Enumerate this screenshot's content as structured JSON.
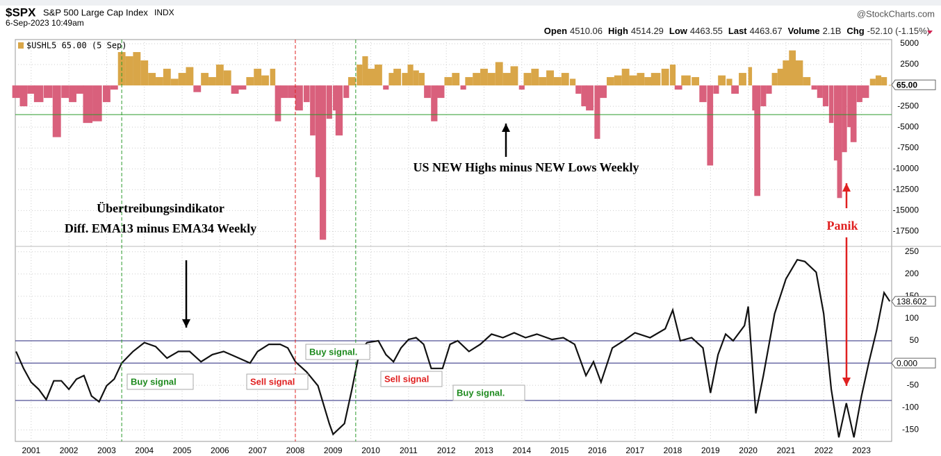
{
  "header": {
    "symbol": "$SPX",
    "name": "S&P 500 Large Cap Index",
    "exchange": "INDX",
    "date": "6-Sep-2023 10:49am",
    "source": "@StockCharts.com",
    "quote": [
      [
        "Open",
        "4510.06"
      ],
      [
        "High",
        "4514.29"
      ],
      [
        "Low",
        "4463.55"
      ],
      [
        "Last",
        "4463.67"
      ],
      [
        "Volume",
        "2.1B"
      ],
      [
        "Chg",
        "-52.10 (-1.15%)"
      ]
    ]
  },
  "annotations": [
    "US NEW Highs minus NEW Lows Weekly",
    "Übertreibungsindikator",
    "Diff. EMA13 minus EMA34 Weekly",
    "Panik",
    "Buy signal",
    "Sell signal",
    "Buy signal.",
    "Sell signal",
    "Buy signal."
  ],
  "chart_data": [
    {
      "type": "bar",
      "xlim": [
        2000.58,
        2023.8
      ],
      "ylim": [
        -19300,
        5500
      ],
      "yticks": [
        5000,
        2500,
        -2500,
        -5000,
        -7500,
        -10000,
        -12500,
        -15000,
        -17500
      ],
      "markers": [
        {
          "value": 65,
          "label": "65.00"
        }
      ],
      "hline": -3500,
      "hline_color": "#2a9a2a",
      "series": [
        {
          "name": "$USHL5 65.00 (5 Sep)",
          "color": "#d9a648",
          "negative_color": "#d9607c",
          "x": [
            2000.6,
            2000.8,
            2001.0,
            2001.2,
            2001.45,
            2001.68,
            2001.9,
            2002.1,
            2002.3,
            2002.5,
            2002.75,
            2003.0,
            2003.2,
            2003.4,
            2003.6,
            2003.8,
            2004.0,
            2004.2,
            2004.4,
            2004.6,
            2004.8,
            2005.0,
            2005.2,
            2005.4,
            2005.6,
            2005.8,
            2006.0,
            2006.2,
            2006.4,
            2006.6,
            2006.8,
            2007.0,
            2007.2,
            2007.4,
            2007.54,
            2007.7,
            2007.9,
            2008.1,
            2008.3,
            2008.46,
            2008.6,
            2008.73,
            2008.9,
            2009.05,
            2009.16,
            2009.35,
            2009.5,
            2009.7,
            2009.85,
            2010.0,
            2010.2,
            2010.4,
            2010.55,
            2010.7,
            2010.9,
            2011.05,
            2011.2,
            2011.35,
            2011.5,
            2011.68,
            2011.85,
            2012.05,
            2012.25,
            2012.45,
            2012.6,
            2012.8,
            2013.0,
            2013.2,
            2013.4,
            2013.6,
            2013.8,
            2014.0,
            2014.15,
            2014.35,
            2014.55,
            2014.75,
            2014.95,
            2015.15,
            2015.35,
            2015.5,
            2015.65,
            2015.8,
            2016.0,
            2016.15,
            2016.35,
            2016.55,
            2016.75,
            2016.95,
            2017.15,
            2017.35,
            2017.55,
            2017.8,
            2018.0,
            2018.15,
            2018.35,
            2018.6,
            2018.8,
            2018.99,
            2019.15,
            2019.3,
            2019.5,
            2019.65,
            2019.85,
            2020.05,
            2020.15,
            2020.24,
            2020.4,
            2020.55,
            2020.7,
            2020.85,
            2021.0,
            2021.17,
            2021.35,
            2021.55,
            2021.75,
            2021.9,
            2022.05,
            2022.2,
            2022.32,
            2022.42,
            2022.55,
            2022.68,
            2022.79,
            2022.95,
            2023.1,
            2023.3,
            2023.45,
            2023.6,
            2023.75
          ],
          "values": [
            -1500,
            -2500,
            -1000,
            -2000,
            -1500,
            -6200,
            -1500,
            -2000,
            -1000,
            -4500,
            -4300,
            -2000,
            -500,
            4000,
            3500,
            4000,
            3000,
            1500,
            1000,
            2000,
            800,
            1500,
            2200,
            -800,
            1500,
            1000,
            2500,
            1800,
            -1000,
            -500,
            1000,
            2000,
            1200,
            2000,
            -4300,
            -1500,
            -1500,
            -3000,
            -2000,
            -6000,
            -11000,
            -18500,
            -4000,
            -3000,
            -6000,
            -1500,
            1000,
            2500,
            3500,
            2000,
            2500,
            -500,
            1500,
            2000,
            1500,
            2500,
            1800,
            1500,
            -1500,
            -4300,
            -1500,
            1000,
            1500,
            -500,
            1000,
            1500,
            2000,
            1500,
            2800,
            1500,
            2300,
            -500,
            1500,
            2000,
            1000,
            1800,
            1000,
            1500,
            800,
            -1000,
            -2500,
            -3000,
            -6400,
            -1500,
            1000,
            1200,
            2000,
            1200,
            1500,
            1000,
            1500,
            2000,
            2500,
            -500,
            1200,
            1000,
            -2000,
            -9600,
            -1000,
            1200,
            800,
            -1000,
            1500,
            2200,
            -3000,
            -13250,
            -2500,
            -1000,
            1500,
            2000,
            3000,
            4200,
            3000,
            1000,
            -500,
            -1500,
            -2500,
            -4500,
            -9000,
            -13500,
            -8000,
            -5000,
            -6800,
            -2000,
            -1500,
            800,
            1200,
            1000,
            65
          ]
        }
      ]
    },
    {
      "type": "line",
      "xlim": [
        2000.58,
        2023.8
      ],
      "ylim": [
        -176,
        262
      ],
      "xticks": [
        2001,
        2002,
        2003,
        2004,
        2005,
        2006,
        2007,
        2008,
        2009,
        2010,
        2011,
        2012,
        2013,
        2014,
        2015,
        2016,
        2017,
        2018,
        2019,
        2020,
        2021,
        2022,
        2023
      ],
      "yticks": [
        250,
        200,
        150,
        100,
        50,
        -50,
        -100,
        -150
      ],
      "markers": [
        {
          "value": 138.602,
          "label": "138.602"
        },
        {
          "value": 0,
          "label": "0.000"
        }
      ],
      "hlines": [
        50,
        0,
        -84
      ],
      "hline_color": "#23237a",
      "vlines": [
        {
          "x": 2003.4,
          "color": "#2a9a2a"
        },
        {
          "x": 2008.0,
          "color": "#e02020"
        },
        {
          "x": 2009.6,
          "color": "#2a9a2a"
        }
      ],
      "series": [
        {
          "color": "#111111",
          "x": [
            2000.6,
            2000.8,
            2001.0,
            2001.2,
            2001.4,
            2001.6,
            2001.8,
            2002.0,
            2002.2,
            2002.4,
            2002.6,
            2002.8,
            2003.0,
            2003.2,
            2003.4,
            2003.7,
            2004.0,
            2004.3,
            2004.6,
            2004.9,
            2005.2,
            2005.5,
            2005.8,
            2006.1,
            2006.4,
            2006.8,
            2007.0,
            2007.3,
            2007.6,
            2007.8,
            2008.0,
            2008.3,
            2008.6,
            2008.9,
            2009.0,
            2009.3,
            2009.5,
            2009.7,
            2009.9,
            2010.2,
            2010.4,
            2010.6,
            2010.8,
            2011.0,
            2011.2,
            2011.4,
            2011.6,
            2011.9,
            2012.1,
            2012.3,
            2012.6,
            2012.9,
            2013.2,
            2013.5,
            2013.8,
            2014.1,
            2014.4,
            2014.8,
            2015.1,
            2015.4,
            2015.7,
            2015.9,
            2016.1,
            2016.4,
            2016.7,
            2017.0,
            2017.4,
            2017.8,
            2018.0,
            2018.2,
            2018.5,
            2018.8,
            2019.0,
            2019.2,
            2019.4,
            2019.6,
            2019.9,
            2020.0,
            2020.2,
            2020.4,
            2020.7,
            2021.0,
            2021.3,
            2021.5,
            2021.8,
            2022.0,
            2022.2,
            2022.4,
            2022.6,
            2022.8,
            2023.0,
            2023.2,
            2023.4,
            2023.6,
            2023.75
          ],
          "values": [
            26,
            -12,
            -43,
            -59,
            -82,
            -40,
            -40,
            -59,
            -36,
            -28,
            -74,
            -87,
            -51,
            -36,
            0,
            26,
            46,
            37,
            11,
            26,
            26,
            3,
            19,
            26,
            15,
            0,
            26,
            42,
            42,
            34,
            3,
            -20,
            -51,
            -136,
            -160,
            -136,
            -59,
            26,
            46,
            50,
            19,
            3,
            34,
            53,
            57,
            42,
            -12,
            -12,
            42,
            50,
            26,
            42,
            65,
            57,
            68,
            57,
            65,
            53,
            57,
            42,
            -28,
            3,
            -43,
            34,
            50,
            68,
            57,
            77,
            119,
            50,
            57,
            34,
            -67,
            19,
            65,
            50,
            84,
            127,
            -113,
            -28,
            111,
            189,
            232,
            228,
            204,
            111,
            -59,
            -167,
            -90,
            -167,
            -74,
            3,
            73,
            158,
            138.602
          ]
        }
      ]
    }
  ]
}
